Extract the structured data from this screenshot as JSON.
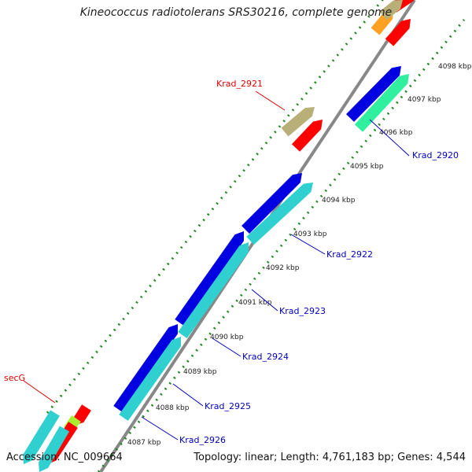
{
  "title": "Kineococcus radiotolerans SRS30216, complete genome",
  "accession": "Accession: NC_009664",
  "topology": "Topology: linear; Length: 4,761,183 bp; Genes: 4,544",
  "ruler_ticks": [
    "4087 kbp",
    "4088 kbp",
    "4089 kbp",
    "4090 kbp",
    "4091 kbp",
    "4092 kbp",
    "4093 kbp",
    "4094 kbp",
    "4095 kbp",
    "4096 kbp",
    "4097 kbp",
    "4098 kbp"
  ],
  "gene_labels": [
    {
      "name": "Krad_2921",
      "color": "#e00000"
    },
    {
      "name": "Krad_2920",
      "color": "#0000c0"
    },
    {
      "name": "Krad_2922",
      "color": "#0000c0"
    },
    {
      "name": "Krad_2923",
      "color": "#0000c0"
    },
    {
      "name": "Krad_2924",
      "color": "#0000c0"
    },
    {
      "name": "Krad_2925",
      "color": "#0000c0"
    },
    {
      "name": "Krad_2926",
      "color": "#0000c0"
    },
    {
      "name": "secG",
      "color": "#e00000"
    }
  ],
  "colors": {
    "backbone": "#888888",
    "blue": "#0000e0",
    "cyan": "#30d0d0",
    "red": "#ff0000",
    "khaki": "#b8b078",
    "green": "#30f0a0",
    "orange": "#ffa020",
    "lime": "#a8f030",
    "dots": "#228822"
  }
}
